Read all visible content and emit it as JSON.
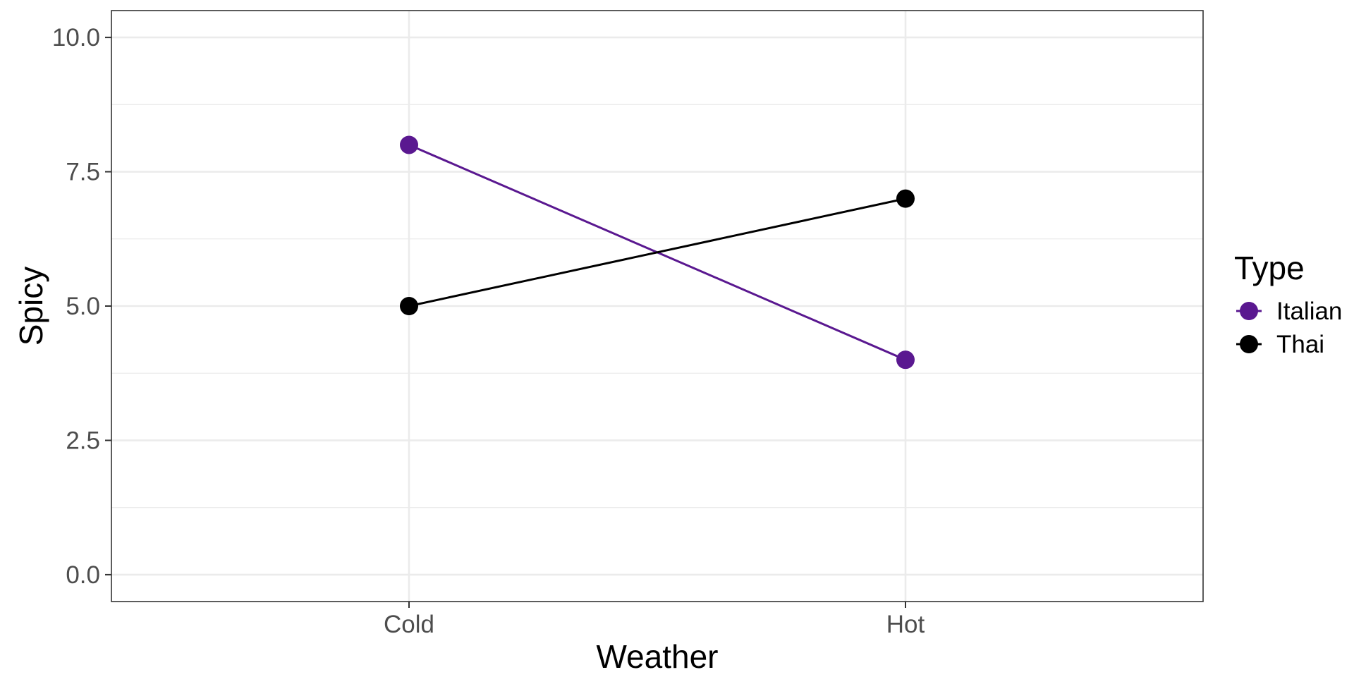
{
  "chart_data": {
    "type": "line",
    "xlabel": "Weather",
    "ylabel": "Spicy",
    "categories": [
      "Cold",
      "Hot"
    ],
    "ylim": [
      -0.5,
      10.5
    ],
    "yticks": [
      0.0,
      2.5,
      5.0,
      7.5,
      10.0
    ],
    "ytick_labels": [
      "0.0",
      "2.5",
      "5.0",
      "7.5",
      "10.0"
    ],
    "grid": true,
    "legend": {
      "title": "Type",
      "position": "right"
    },
    "series": [
      {
        "name": "Italian",
        "color": "#5a1890",
        "values": [
          8.0,
          4.0
        ]
      },
      {
        "name": "Thai",
        "color": "#000000",
        "values": [
          5.0,
          7.0
        ]
      }
    ]
  }
}
